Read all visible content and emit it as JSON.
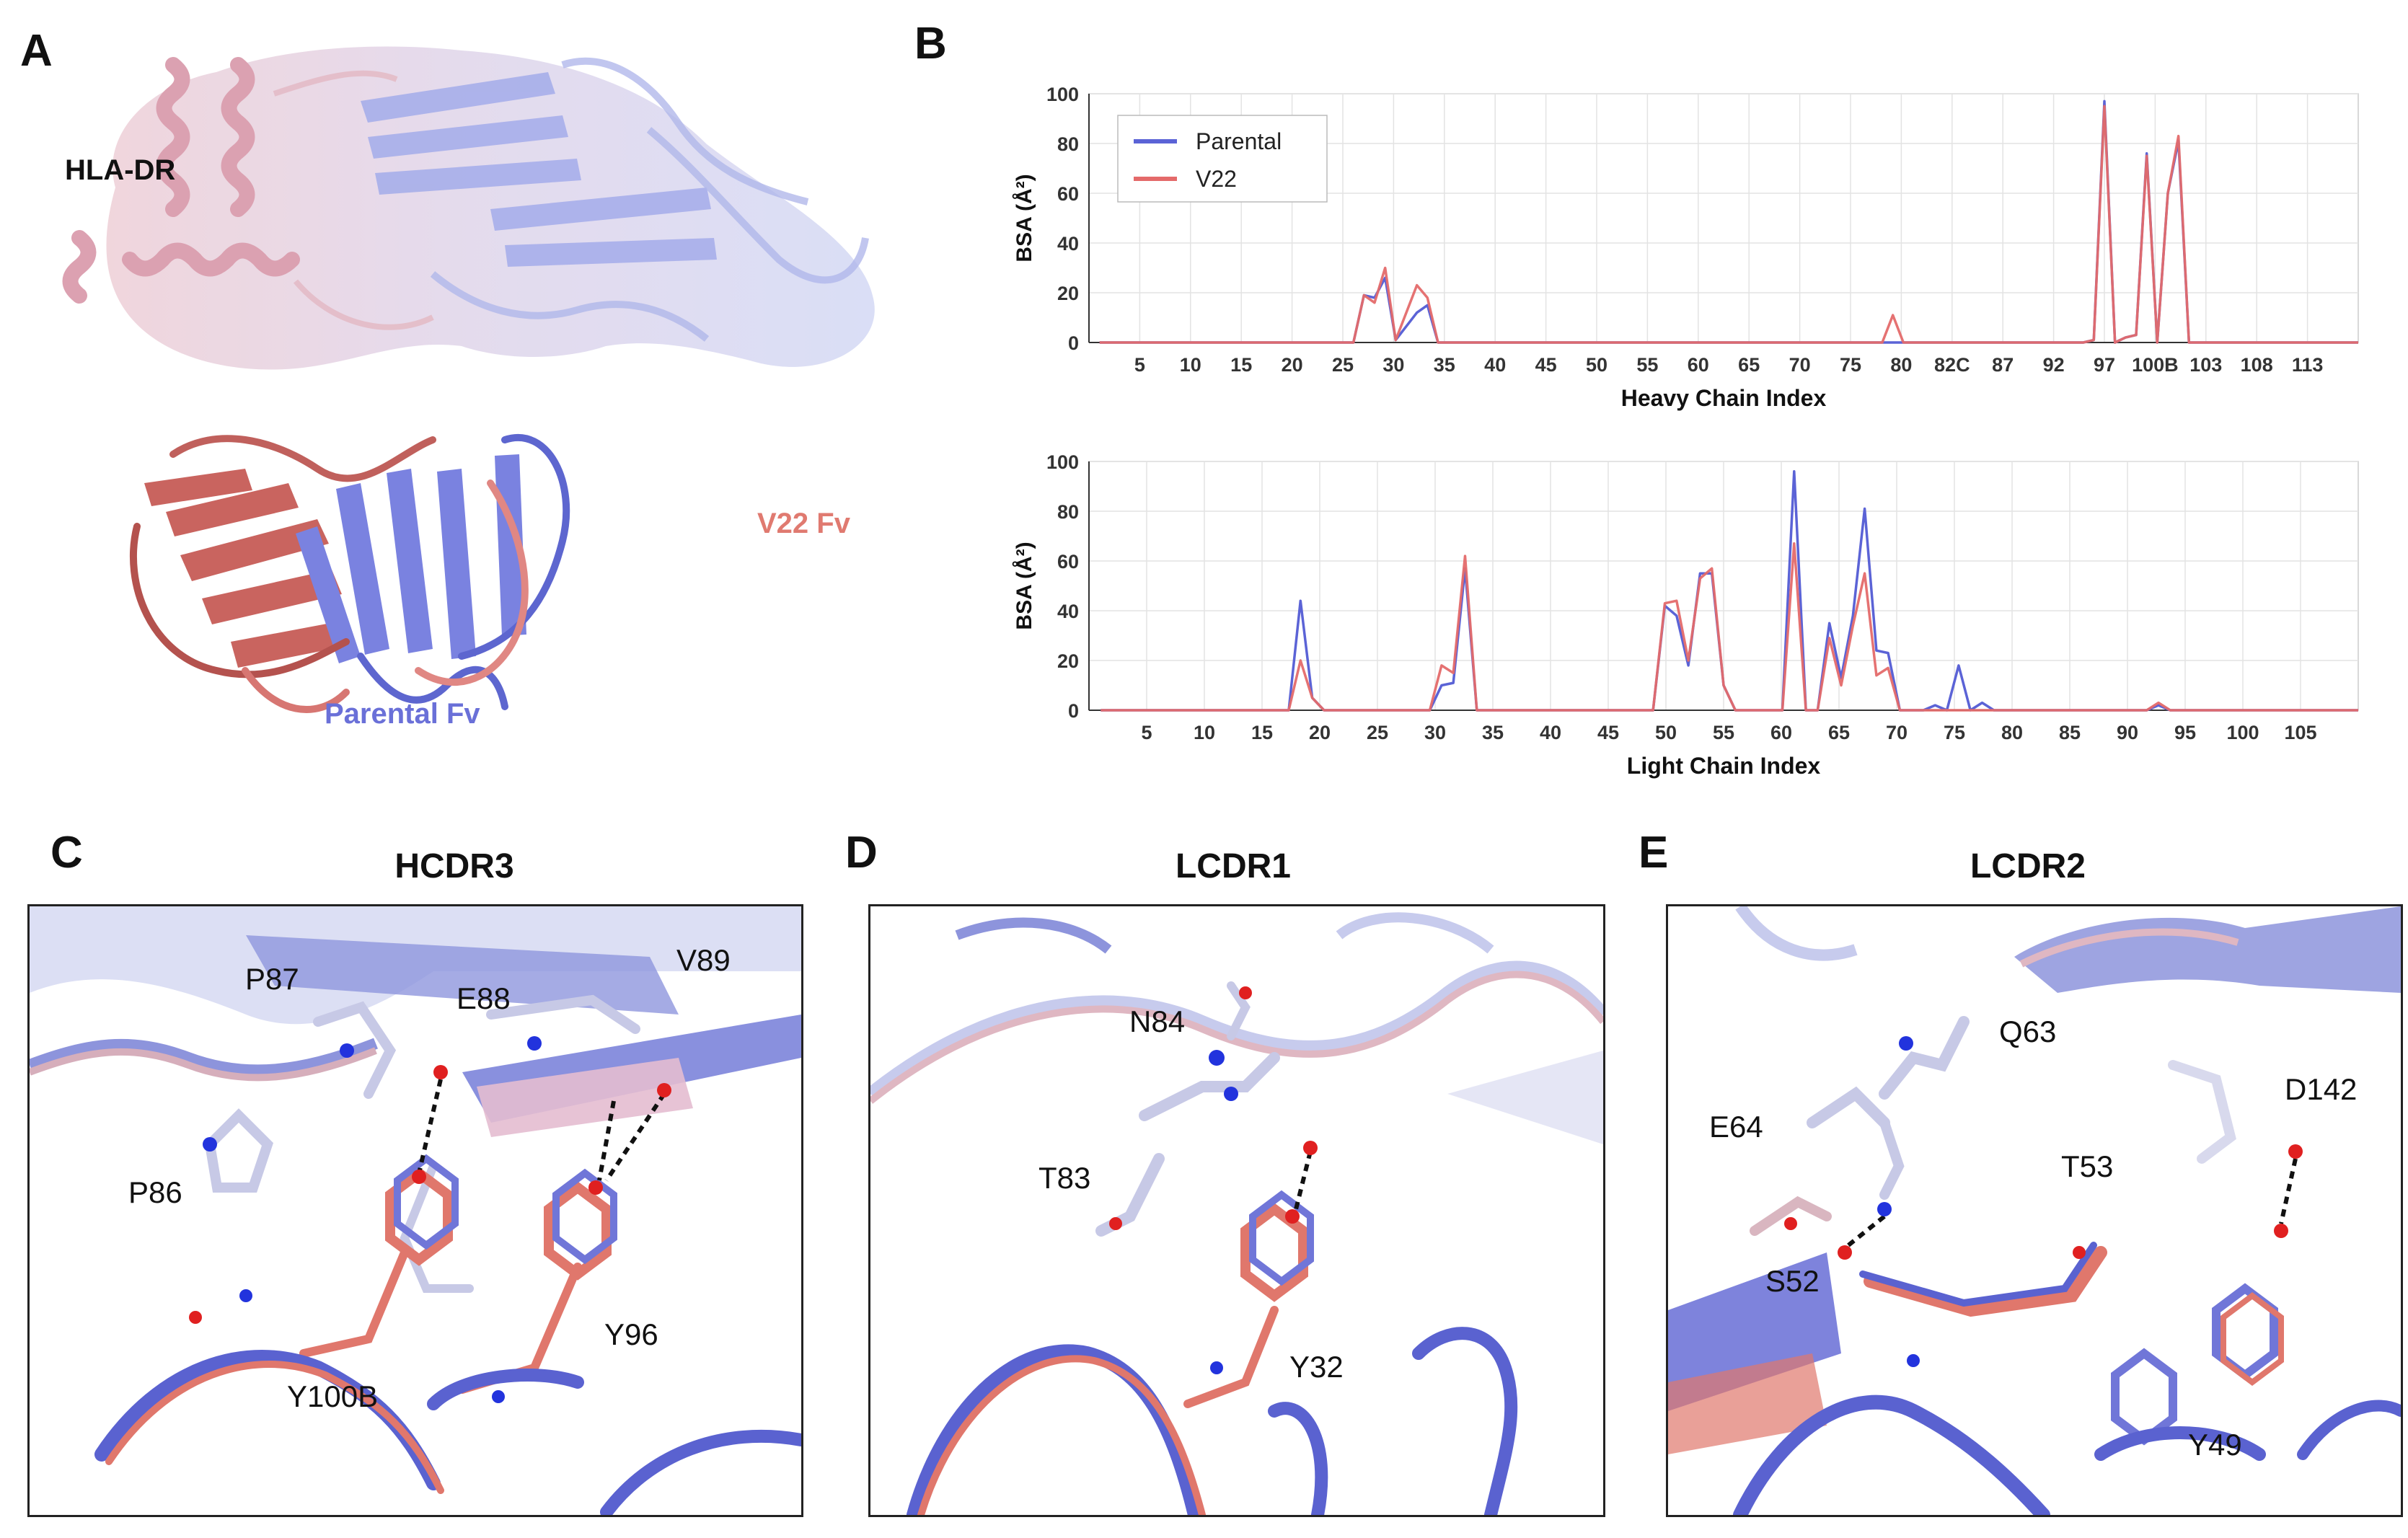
{
  "panels": {
    "A": {
      "letter": "A",
      "labels": {
        "hla": "HLA-DR",
        "v22": "V22 Fv",
        "parental": "Parental Fv"
      }
    },
    "B": {
      "letter": "B"
    },
    "C": {
      "letter": "C",
      "title": "HCDR3",
      "residues": [
        "P87",
        "E88",
        "V89",
        "P86",
        "Y96",
        "Y100B"
      ]
    },
    "D": {
      "letter": "D",
      "title": "LCDR1",
      "residues": [
        "N84",
        "T83",
        "Y32"
      ]
    },
    "E": {
      "letter": "E",
      "title": "LCDR2",
      "residues": [
        "Q63",
        "D142",
        "E64",
        "T53",
        "S52",
        "Y49"
      ]
    }
  },
  "colors": {
    "parental": "#5b63d6",
    "v22": "#e46a6a",
    "hla_light": "#b8bfe9",
    "hla_pink": "#e7b3c0",
    "oxygen": "#e02020",
    "nitrogen": "#2233dd"
  },
  "chart_data": [
    {
      "type": "line",
      "ylabel": "BSA (Å²)",
      "xlabel": "Heavy Chain Index",
      "ylim": [
        0,
        100
      ],
      "yticks": [
        0,
        20,
        40,
        60,
        80,
        100
      ],
      "grid": true,
      "legend_position": "top-left",
      "xticks": [
        "5",
        "10",
        "15",
        "20",
        "25",
        "30",
        "35",
        "40",
        "45",
        "50",
        "55",
        "60",
        "65",
        "70",
        "75",
        "80",
        "82C",
        "87",
        "92",
        "97",
        "100B",
        "103",
        "108",
        "113"
      ],
      "n_positions": 120,
      "series": [
        {
          "name": "Parental",
          "points": [
            [
              25,
              0
            ],
            [
              26,
              19
            ],
            [
              27,
              18
            ],
            [
              28,
              26
            ],
            [
              29,
              1
            ],
            [
              31,
              12
            ],
            [
              32,
              15
            ],
            [
              33,
              0
            ],
            [
              76,
              0
            ],
            [
              94,
              0
            ],
            [
              95,
              1
            ],
            [
              96,
              97
            ],
            [
              97,
              0
            ],
            [
              98,
              2
            ],
            [
              99,
              3
            ],
            [
              100,
              76
            ],
            [
              101,
              0
            ],
            [
              102,
              60
            ],
            [
              103,
              81
            ],
            [
              104,
              0
            ]
          ]
        },
        {
          "name": "V22",
          "points": [
            [
              25,
              0
            ],
            [
              26,
              19
            ],
            [
              27,
              16
            ],
            [
              28,
              30
            ],
            [
              29,
              1
            ],
            [
              31,
              23
            ],
            [
              32,
              18
            ],
            [
              33,
              0
            ],
            [
              75,
              0
            ],
            [
              76,
              11
            ],
            [
              77,
              0
            ],
            [
              94,
              0
            ],
            [
              95,
              1
            ],
            [
              96,
              95
            ],
            [
              97,
              0
            ],
            [
              98,
              2
            ],
            [
              99,
              3
            ],
            [
              100,
              75
            ],
            [
              101,
              0
            ],
            [
              102,
              60
            ],
            [
              103,
              83
            ],
            [
              104,
              0
            ]
          ]
        }
      ]
    },
    {
      "type": "line",
      "ylabel": "BSA (Å²)",
      "xlabel": "Light Chain Index",
      "ylim": [
        0,
        100
      ],
      "yticks": [
        0,
        20,
        40,
        60,
        80,
        100
      ],
      "grid": true,
      "xticks": [
        "5",
        "10",
        "15",
        "20",
        "25",
        "30",
        "35",
        "40",
        "45",
        "50",
        "55",
        "60",
        "65",
        "70",
        "75",
        "80",
        "85",
        "90",
        "95",
        "100",
        "105"
      ],
      "n_positions": 108,
      "series": [
        {
          "name": "Parental",
          "points": [
            [
              17,
              0
            ],
            [
              18,
              44
            ],
            [
              19,
              5
            ],
            [
              20,
              0
            ],
            [
              29,
              0
            ],
            [
              30,
              10
            ],
            [
              31,
              11
            ],
            [
              32,
              57
            ],
            [
              33,
              0
            ],
            [
              48,
              0
            ],
            [
              49,
              42
            ],
            [
              50,
              38
            ],
            [
              51,
              18
            ],
            [
              52,
              55
            ],
            [
              53,
              55
            ],
            [
              54,
              10
            ],
            [
              55,
              0
            ],
            [
              59,
              0
            ],
            [
              60,
              96
            ],
            [
              61,
              0
            ],
            [
              62,
              0
            ],
            [
              63,
              35
            ],
            [
              64,
              13
            ],
            [
              65,
              38
            ],
            [
              66,
              81
            ],
            [
              67,
              24
            ],
            [
              68,
              23
            ],
            [
              69,
              0
            ],
            [
              71,
              0
            ],
            [
              72,
              2
            ],
            [
              73,
              0
            ],
            [
              74,
              18
            ],
            [
              75,
              0
            ],
            [
              76,
              3
            ],
            [
              77,
              0
            ],
            [
              90,
              0
            ],
            [
              91,
              2
            ],
            [
              92,
              0
            ]
          ]
        },
        {
          "name": "V22",
          "points": [
            [
              17,
              0
            ],
            [
              18,
              20
            ],
            [
              19,
              5
            ],
            [
              20,
              0
            ],
            [
              29,
              0
            ],
            [
              30,
              18
            ],
            [
              31,
              15
            ],
            [
              32,
              62
            ],
            [
              33,
              0
            ],
            [
              48,
              0
            ],
            [
              49,
              43
            ],
            [
              50,
              44
            ],
            [
              51,
              20
            ],
            [
              52,
              53
            ],
            [
              53,
              57
            ],
            [
              54,
              10
            ],
            [
              55,
              0
            ],
            [
              59,
              0
            ],
            [
              60,
              67
            ],
            [
              61,
              0
            ],
            [
              62,
              0
            ],
            [
              63,
              29
            ],
            [
              64,
              10
            ],
            [
              65,
              34
            ],
            [
              66,
              55
            ],
            [
              67,
              14
            ],
            [
              68,
              17
            ],
            [
              69,
              0
            ],
            [
              90,
              0
            ],
            [
              91,
              3
            ],
            [
              92,
              0
            ]
          ]
        }
      ]
    }
  ]
}
